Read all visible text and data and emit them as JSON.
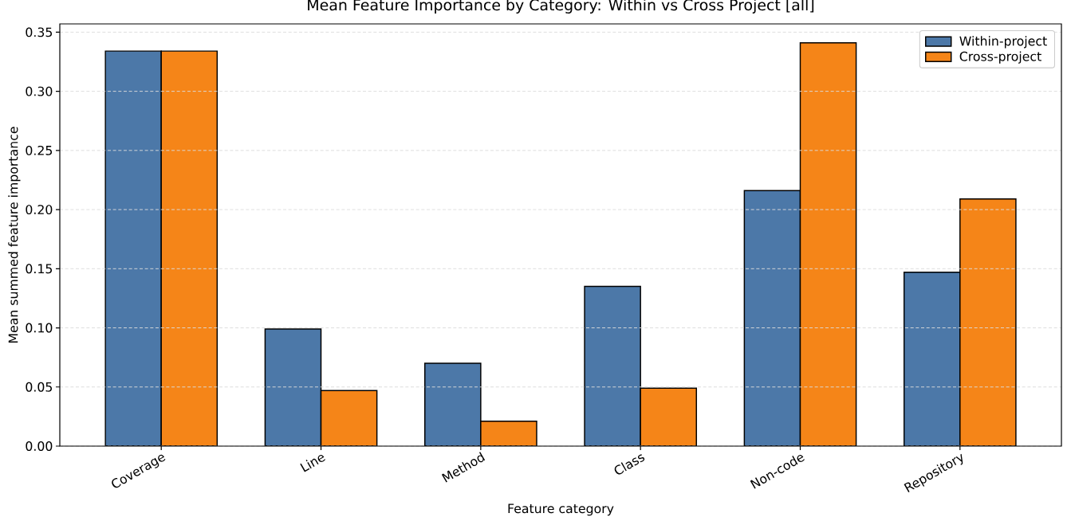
{
  "chart_data": {
    "type": "bar",
    "title": "Mean Feature Importance by Category: Within vs Cross Project [all]",
    "xlabel": "Feature category",
    "ylabel": "Mean summed feature importance",
    "categories": [
      "Coverage",
      "Line",
      "Method",
      "Class",
      "Non-code",
      "Repository"
    ],
    "series": [
      {
        "name": "Within-project",
        "color": "#4c78a8",
        "values": [
          0.334,
          0.099,
          0.07,
          0.135,
          0.216,
          0.147
        ]
      },
      {
        "name": "Cross-project",
        "color": "#f58518",
        "values": [
          0.334,
          0.047,
          0.021,
          0.049,
          0.341,
          0.209
        ]
      }
    ],
    "ylim": [
      0,
      0.357
    ],
    "yticks": [
      {
        "value": 0,
        "label": "0.00"
      },
      {
        "value": 0.05,
        "label": "0.05"
      },
      {
        "value": 0.1,
        "label": "0.10"
      },
      {
        "value": 0.15,
        "label": "0.15"
      },
      {
        "value": 0.2,
        "label": "0.20"
      },
      {
        "value": 0.25,
        "label": "0.25"
      },
      {
        "value": 0.3,
        "label": "0.30"
      },
      {
        "value": 0.35,
        "label": "0.35"
      }
    ],
    "grid": "y",
    "legend": "top right"
  }
}
